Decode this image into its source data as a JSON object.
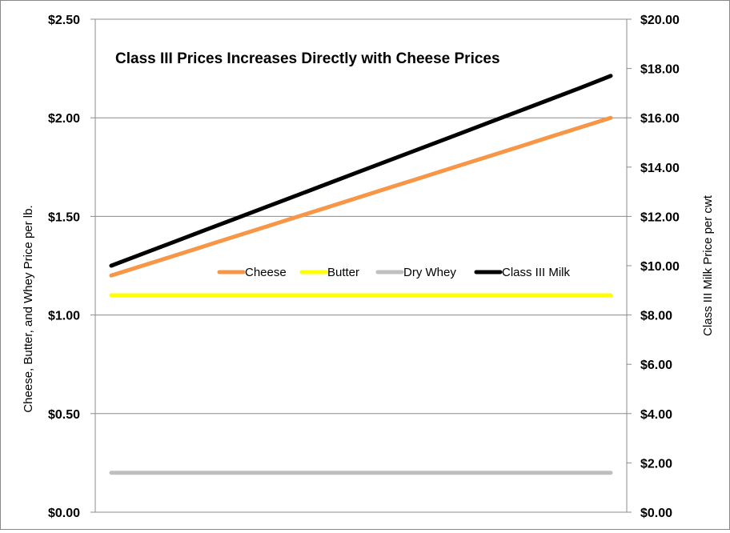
{
  "chart_data": {
    "type": "line",
    "title": "Class III  Prices Increases Directly with Cheese Prices",
    "ylabel_left": "Cheese, Butter, and Whey Price per lb.",
    "ylabel_right": "Class III Milk Price per cwt",
    "ylim_left": [
      0,
      2.5
    ],
    "ylim_right": [
      0,
      20
    ],
    "yticks_left": [
      "$0.00",
      "$0.50",
      "$1.00",
      "$1.50",
      "$2.00",
      "$2.50"
    ],
    "yticks_right": [
      "$0.00",
      "$2.00",
      "$4.00",
      "$6.00",
      "$8.00",
      "$10.00",
      "$12.00",
      "$14.00",
      "$16.00",
      "$18.00",
      "$20.00"
    ],
    "grid": true,
    "legend_position": "center",
    "x": [
      1,
      2,
      3,
      4,
      5,
      6,
      7,
      8,
      9,
      10,
      11,
      12,
      13,
      14,
      15,
      16,
      17
    ],
    "series": [
      {
        "name": "Cheese",
        "axis": "left",
        "color": "#F79646",
        "values": [
          1.2,
          1.25,
          1.3,
          1.35,
          1.4,
          1.45,
          1.5,
          1.55,
          1.6,
          1.65,
          1.7,
          1.75,
          1.8,
          1.85,
          1.9,
          1.95,
          2.0
        ]
      },
      {
        "name": "Butter",
        "axis": "left",
        "color": "#FFFF00",
        "values": [
          1.1,
          1.1,
          1.1,
          1.1,
          1.1,
          1.1,
          1.1,
          1.1,
          1.1,
          1.1,
          1.1,
          1.1,
          1.1,
          1.1,
          1.1,
          1.1,
          1.1
        ]
      },
      {
        "name": "Dry Whey",
        "axis": "left",
        "color": "#BFBFBF",
        "values": [
          0.2,
          0.2,
          0.2,
          0.2,
          0.2,
          0.2,
          0.2,
          0.2,
          0.2,
          0.2,
          0.2,
          0.2,
          0.2,
          0.2,
          0.2,
          0.2,
          0.2
        ]
      },
      {
        "name": "Class III Milk",
        "axis": "right",
        "color": "#000000",
        "values": [
          10.0,
          10.48,
          10.96,
          11.44,
          11.92,
          12.4,
          12.88,
          13.36,
          13.84,
          14.32,
          14.8,
          15.28,
          15.76,
          16.24,
          16.72,
          17.2,
          17.7
        ]
      }
    ]
  }
}
